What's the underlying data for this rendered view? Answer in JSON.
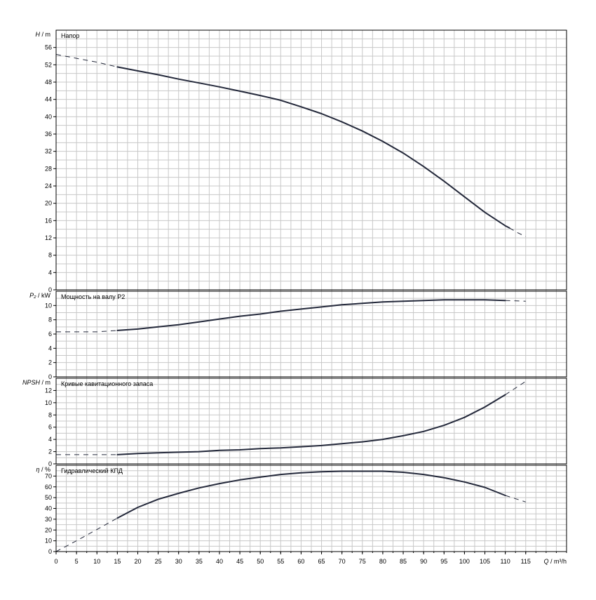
{
  "colors": {
    "grid": "#c8c8c8",
    "frame": "#000000",
    "curve": "#23283a"
  },
  "chart_data": {
    "type": "line",
    "x_axis": {
      "label": "Q / m³/h",
      "min": 0,
      "max": 125,
      "ticks": [
        0,
        5,
        10,
        15,
        20,
        25,
        30,
        35,
        40,
        45,
        50,
        55,
        60,
        65,
        70,
        75,
        80,
        85,
        90,
        95,
        100,
        105,
        110,
        115
      ],
      "minor_step": 2.5
    },
    "panels": [
      {
        "id": "head",
        "title": "Напор",
        "ylabel_symbol": "H",
        "ylabel_unit": "/ m",
        "ylim": [
          0,
          60
        ],
        "yticks": [
          0,
          4,
          8,
          12,
          16,
          20,
          24,
          28,
          32,
          36,
          40,
          44,
          48,
          52,
          56
        ],
        "solid": [
          [
            15,
            51.5
          ],
          [
            20,
            50.6
          ],
          [
            25,
            49.7
          ],
          [
            30,
            48.7
          ],
          [
            35,
            47.8
          ],
          [
            40,
            46.9
          ],
          [
            45,
            45.9
          ],
          [
            50,
            44.9
          ],
          [
            55,
            43.8
          ],
          [
            60,
            42.3
          ],
          [
            65,
            40.7
          ],
          [
            70,
            38.8
          ],
          [
            75,
            36.7
          ],
          [
            80,
            34.3
          ],
          [
            85,
            31.6
          ],
          [
            90,
            28.5
          ],
          [
            95,
            25.1
          ],
          [
            100,
            21.5
          ],
          [
            105,
            17.9
          ],
          [
            110,
            14.8
          ],
          [
            111,
            14.3
          ]
        ],
        "dashed_start": [
          [
            0,
            54.4
          ],
          [
            5,
            53.5
          ],
          [
            10,
            52.6
          ],
          [
            15,
            51.5
          ]
        ],
        "dashed_end": [
          [
            111,
            14.3
          ],
          [
            113,
            13.2
          ],
          [
            115,
            12.3
          ]
        ]
      },
      {
        "id": "power",
        "title": "Мощность на валу P2",
        "ylabel_symbol": "P₂",
        "ylabel_unit": "/ kW",
        "ylim": [
          0,
          12
        ],
        "yticks": [
          0,
          2,
          4,
          6,
          8,
          10
        ],
        "solid": [
          [
            15,
            6.5
          ],
          [
            20,
            6.7
          ],
          [
            25,
            7.0
          ],
          [
            30,
            7.3
          ],
          [
            35,
            7.7
          ],
          [
            40,
            8.1
          ],
          [
            45,
            8.5
          ],
          [
            50,
            8.8
          ],
          [
            55,
            9.2
          ],
          [
            60,
            9.5
          ],
          [
            65,
            9.8
          ],
          [
            70,
            10.1
          ],
          [
            75,
            10.3
          ],
          [
            80,
            10.5
          ],
          [
            85,
            10.6
          ],
          [
            90,
            10.7
          ],
          [
            95,
            10.8
          ],
          [
            100,
            10.8
          ],
          [
            105,
            10.8
          ],
          [
            110,
            10.7
          ]
        ],
        "dashed_start": [
          [
            0,
            6.3
          ],
          [
            5,
            6.3
          ],
          [
            10,
            6.3
          ],
          [
            15,
            6.5
          ]
        ],
        "dashed_end": [
          [
            110,
            10.7
          ],
          [
            115,
            10.6
          ]
        ]
      },
      {
        "id": "npsh",
        "title": "Кривые кавитационного запаса",
        "ylabel_symbol": "NPSH",
        "ylabel_unit": "/ m",
        "ylim": [
          0,
          14
        ],
        "yticks": [
          0,
          2,
          4,
          6,
          8,
          10,
          12
        ],
        "solid": [
          [
            15,
            1.5
          ],
          [
            20,
            1.7
          ],
          [
            25,
            1.8
          ],
          [
            30,
            1.9
          ],
          [
            35,
            2.0
          ],
          [
            40,
            2.2
          ],
          [
            45,
            2.3
          ],
          [
            50,
            2.5
          ],
          [
            55,
            2.6
          ],
          [
            60,
            2.8
          ],
          [
            65,
            3.0
          ],
          [
            70,
            3.3
          ],
          [
            75,
            3.6
          ],
          [
            80,
            4.0
          ],
          [
            85,
            4.6
          ],
          [
            90,
            5.3
          ],
          [
            95,
            6.3
          ],
          [
            100,
            7.6
          ],
          [
            105,
            9.3
          ],
          [
            110,
            11.3
          ]
        ],
        "dashed_start": [
          [
            0,
            1.5
          ],
          [
            5,
            1.5
          ],
          [
            10,
            1.5
          ],
          [
            15,
            1.5
          ]
        ],
        "dashed_end": [
          [
            110,
            11.3
          ],
          [
            115,
            13.5
          ]
        ]
      },
      {
        "id": "efficiency",
        "title": "Гидравлический КПД",
        "ylabel_symbol": "η",
        "ylabel_unit": "/ %",
        "ylim": [
          0,
          80
        ],
        "yticks": [
          0,
          10,
          20,
          30,
          40,
          50,
          60,
          70
        ],
        "solid": [
          [
            15,
            31
          ],
          [
            20,
            41
          ],
          [
            25,
            48.5
          ],
          [
            30,
            54
          ],
          [
            35,
            59
          ],
          [
            40,
            63
          ],
          [
            45,
            66.5
          ],
          [
            50,
            69
          ],
          [
            55,
            71.5
          ],
          [
            60,
            73
          ],
          [
            65,
            74
          ],
          [
            70,
            74.5
          ],
          [
            75,
            74.5
          ],
          [
            80,
            74.5
          ],
          [
            85,
            73.5
          ],
          [
            90,
            71.5
          ],
          [
            95,
            68.5
          ],
          [
            100,
            64.5
          ],
          [
            105,
            59.5
          ],
          [
            110,
            52
          ]
        ],
        "dashed_start": [
          [
            0,
            0
          ],
          [
            5,
            10
          ],
          [
            10,
            20.5
          ],
          [
            15,
            31
          ]
        ],
        "dashed_end": [
          [
            110,
            52
          ],
          [
            115,
            46
          ]
        ]
      }
    ]
  }
}
